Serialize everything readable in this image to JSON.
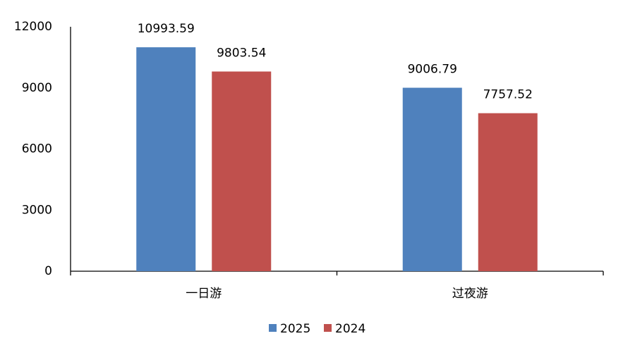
{
  "chart_data": {
    "type": "bar",
    "categories": [
      "一日游",
      "过夜游"
    ],
    "series": [
      {
        "name": "2025",
        "color": "#4f81bd",
        "values": [
          10993.59,
          9006.79
        ]
      },
      {
        "name": "2024",
        "color": "#c0504d",
        "values": [
          9803.54,
          7757.52
        ]
      }
    ],
    "ylim": [
      0,
      12000
    ],
    "yticks": [
      0,
      3000,
      6000,
      9000,
      12000
    ],
    "grid": false,
    "legend": "bottom",
    "value_labels_shown": true
  }
}
